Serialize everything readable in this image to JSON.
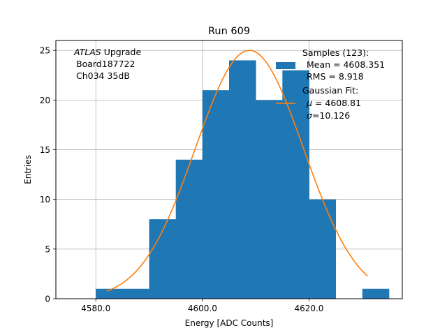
{
  "chart_data": {
    "type": "bar",
    "title": "Run 609",
    "xlabel": "Energy [ADC Counts]",
    "ylabel": "Entries",
    "xlim": [
      4572.5,
      4637.5
    ],
    "ylim": [
      0,
      26
    ],
    "grid": true,
    "x_ticks": [
      4580,
      4600,
      4620
    ],
    "x_tick_labels": [
      "4580.0",
      "4600.0",
      "4620.0"
    ],
    "y_ticks": [
      0,
      5,
      10,
      15,
      20,
      25
    ],
    "y_tick_labels": [
      "0",
      "5",
      "10",
      "15",
      "20",
      "25"
    ],
    "bar_color": "#1f77b4",
    "fit_color": "#ff7f0e",
    "bins": [
      {
        "x0": 4580,
        "x1": 4585,
        "count": 1
      },
      {
        "x0": 4585,
        "x1": 4590,
        "count": 1
      },
      {
        "x0": 4590,
        "x1": 4595,
        "count": 8
      },
      {
        "x0": 4595,
        "x1": 4600,
        "count": 14
      },
      {
        "x0": 4600,
        "x1": 4605,
        "count": 21
      },
      {
        "x0": 4605,
        "x1": 4610,
        "count": 24
      },
      {
        "x0": 4610,
        "x1": 4615,
        "count": 20
      },
      {
        "x0": 4615,
        "x1": 4620,
        "count": 23
      },
      {
        "x0": 4620,
        "x1": 4625,
        "count": 10
      },
      {
        "x0": 4625,
        "x1": 4630,
        "count": 0
      },
      {
        "x0": 4630,
        "x1": 4635,
        "count": 1
      }
    ],
    "fit": {
      "amplitude": 25,
      "mu": 4608.81,
      "sigma": 10.126,
      "x_min": 4582,
      "x_max": 4631
    },
    "annotation": {
      "line1_italic": "ATLAS",
      "line1_rest": " Upgrade",
      "line2": "Board187722",
      "line3": "Ch034 35dB"
    },
    "legend": {
      "placement": "top-right",
      "samples_title": "Samples (123):",
      "samples_mean": "Mean = 4608.351",
      "samples_rms": "RMS = 8.918",
      "fit_title": "Gaussian Fit:",
      "fit_mu_symbol": "μ",
      "fit_mu_value": " = 4608.81",
      "fit_sigma_symbol": "σ",
      "fit_sigma_value": "=10.126"
    }
  }
}
